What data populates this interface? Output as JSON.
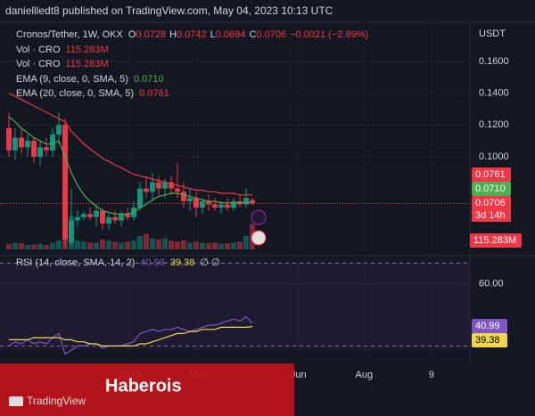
{
  "header": {
    "publisher": "daniellledt8 published on TradingView.com, May 04, 2023 10:13 UTC"
  },
  "chart_data": {
    "type": "candlestick",
    "symbol": "Cronos/Tether, 1W, OKX",
    "ohlc_legend": [
      {
        "key": "O",
        "value": "0.0728"
      },
      {
        "key": "H",
        "value": "0.0742"
      },
      {
        "key": "L",
        "value": "0.0694"
      },
      {
        "key": "C",
        "value": "0.0706"
      }
    ],
    "change": "−0.0021 (−2.89%)",
    "currency": "USDT",
    "up_color": "#089981",
    "down_color": "#f23645",
    "candles": [
      [
        0.118,
        0.128,
        0.1,
        0.104
      ],
      [
        0.104,
        0.118,
        0.098,
        0.112
      ],
      [
        0.112,
        0.118,
        0.102,
        0.106
      ],
      [
        0.106,
        0.114,
        0.1,
        0.11
      ],
      [
        0.11,
        0.112,
        0.096,
        0.1
      ],
      [
        0.1,
        0.11,
        0.094,
        0.106
      ],
      [
        0.106,
        0.112,
        0.1,
        0.104
      ],
      [
        0.104,
        0.118,
        0.1,
        0.114
      ],
      [
        0.114,
        0.128,
        0.108,
        0.12
      ],
      [
        0.12,
        0.124,
        0.044,
        0.048
      ],
      [
        0.046,
        0.08,
        0.044,
        0.06
      ],
      [
        0.06,
        0.066,
        0.056,
        0.062
      ],
      [
        0.062,
        0.066,
        0.06,
        0.064
      ],
      [
        0.064,
        0.068,
        0.06,
        0.062
      ],
      [
        0.062,
        0.07,
        0.056,
        0.066
      ],
      [
        0.066,
        0.068,
        0.054,
        0.058
      ],
      [
        0.058,
        0.064,
        0.054,
        0.062
      ],
      [
        0.062,
        0.066,
        0.058,
        0.06
      ],
      [
        0.06,
        0.066,
        0.056,
        0.064
      ],
      [
        0.064,
        0.068,
        0.06,
        0.062
      ],
      [
        0.062,
        0.072,
        0.06,
        0.068
      ],
      [
        0.068,
        0.084,
        0.066,
        0.08
      ],
      [
        0.08,
        0.088,
        0.074,
        0.078
      ],
      [
        0.078,
        0.09,
        0.072,
        0.084
      ],
      [
        0.084,
        0.088,
        0.076,
        0.08
      ],
      [
        0.08,
        0.086,
        0.074,
        0.084
      ],
      [
        0.084,
        0.088,
        0.076,
        0.08
      ],
      [
        0.08,
        0.096,
        0.074,
        0.078
      ],
      [
        0.078,
        0.084,
        0.068,
        0.072
      ],
      [
        0.072,
        0.08,
        0.066,
        0.074
      ],
      [
        0.074,
        0.078,
        0.062,
        0.068
      ],
      [
        0.068,
        0.074,
        0.064,
        0.072
      ],
      [
        0.072,
        0.076,
        0.066,
        0.07
      ],
      [
        0.07,
        0.074,
        0.066,
        0.068
      ],
      [
        0.068,
        0.072,
        0.064,
        0.07
      ],
      [
        0.07,
        0.074,
        0.066,
        0.068
      ],
      [
        0.068,
        0.074,
        0.066,
        0.072
      ],
      [
        0.072,
        0.076,
        0.068,
        0.07
      ],
      [
        0.07,
        0.08,
        0.068,
        0.074
      ],
      [
        0.0728,
        0.0742,
        0.0694,
        0.0706
      ]
    ],
    "xlim": [
      -1.43,
      73.57
    ],
    "xticks": [
      {
        "value": 19.3,
        "label": "2023"
      },
      {
        "value": 30.3,
        "label": "Mar"
      },
      {
        "value": 46.4,
        "label": "Jun"
      },
      {
        "value": 56.9,
        "label": "Aug"
      },
      {
        "value": 67.7,
        "label": "9"
      }
    ],
    "ylim": [
      0.0406,
      0.1846
    ],
    "yticks": [
      {
        "value": 0.16,
        "label": "0.1600"
      },
      {
        "value": 0.14,
        "label": "0.1400"
      },
      {
        "value": 0.12,
        "label": "0.1200"
      },
      {
        "value": 0.1,
        "label": "0.1000"
      }
    ],
    "volume": {
      "name": "Vol · CRO",
      "label": "115.283M",
      "lim": [
        0,
        600
      ],
      "values": [
        25,
        30,
        28,
        20,
        22,
        25,
        20,
        30,
        40,
        300,
        150,
        40,
        35,
        30,
        30,
        45,
        40,
        35,
        30,
        35,
        40,
        60,
        70,
        50,
        45,
        50,
        40,
        35,
        40,
        30,
        35,
        30,
        28,
        30,
        25,
        28,
        30,
        35,
        60,
        115.283
      ]
    },
    "series": [
      {
        "name": "EMA (9, close, 0, SMA, 5)",
        "label": "0.0710",
        "color": "#4caf50",
        "values": [
          0.125,
          0.122,
          0.118,
          0.115,
          0.112,
          0.11,
          0.108,
          0.108,
          0.11,
          0.1,
          0.09,
          0.082,
          0.076,
          0.072,
          0.069,
          0.066,
          0.065,
          0.064,
          0.064,
          0.064,
          0.065,
          0.068,
          0.07,
          0.073,
          0.075,
          0.076,
          0.077,
          0.077,
          0.076,
          0.075,
          0.074,
          0.073,
          0.072,
          0.072,
          0.071,
          0.071,
          0.071,
          0.071,
          0.071,
          0.071
        ]
      },
      {
        "name": "EMA (20, close, 0, SMA, 5)",
        "label": "0.0761",
        "color": "#f23645",
        "values": [
          0.14,
          0.138,
          0.136,
          0.134,
          0.132,
          0.13,
          0.128,
          0.126,
          0.124,
          0.122,
          0.116,
          0.112,
          0.108,
          0.105,
          0.102,
          0.099,
          0.097,
          0.095,
          0.093,
          0.091,
          0.089,
          0.088,
          0.087,
          0.086,
          0.085,
          0.084,
          0.083,
          0.082,
          0.081,
          0.08,
          0.079,
          0.079,
          0.078,
          0.078,
          0.077,
          0.077,
          0.077,
          0.076,
          0.076,
          0.0761
        ]
      }
    ],
    "price_tags": [
      {
        "text": "0.0761",
        "color": "#f23645"
      },
      {
        "text": "0.0710",
        "color": "#4caf50"
      },
      {
        "text": "0.0706",
        "color": "#f23645"
      }
    ],
    "countdown": "3d 14h",
    "rsi": {
      "name": "RSI (14, close, SMA, 14, 2)",
      "ylim": [
        25,
        71
      ],
      "yticks": [
        {
          "value": 60,
          "label": "60.00"
        }
      ],
      "bands": [
        70,
        30
      ],
      "na": "∅ ∅",
      "series": [
        {
          "label": "40.99",
          "color": "#7e57c2",
          "values": [
            30,
            32,
            31,
            33,
            31,
            32,
            31,
            34,
            36,
            26,
            28,
            30,
            30,
            31,
            31,
            29,
            30,
            30,
            30,
            31,
            32,
            36,
            37,
            38,
            37,
            38,
            38,
            39,
            38,
            37,
            38,
            39,
            40,
            40,
            41,
            42,
            43,
            42,
            44,
            40.99
          ]
        },
        {
          "label": "39.38",
          "color": "#f0d64a",
          "values": [
            33,
            33,
            33,
            33,
            34,
            34,
            34,
            34,
            34,
            33,
            33,
            32,
            32,
            31,
            31,
            30,
            30,
            30,
            30,
            30,
            30,
            31,
            31,
            32,
            33,
            34,
            35,
            36,
            36,
            37,
            37,
            38,
            38,
            38,
            39,
            39,
            39,
            39,
            39,
            39.38
          ]
        }
      ]
    }
  },
  "watermark": "Haberois",
  "brand": "TradingView"
}
